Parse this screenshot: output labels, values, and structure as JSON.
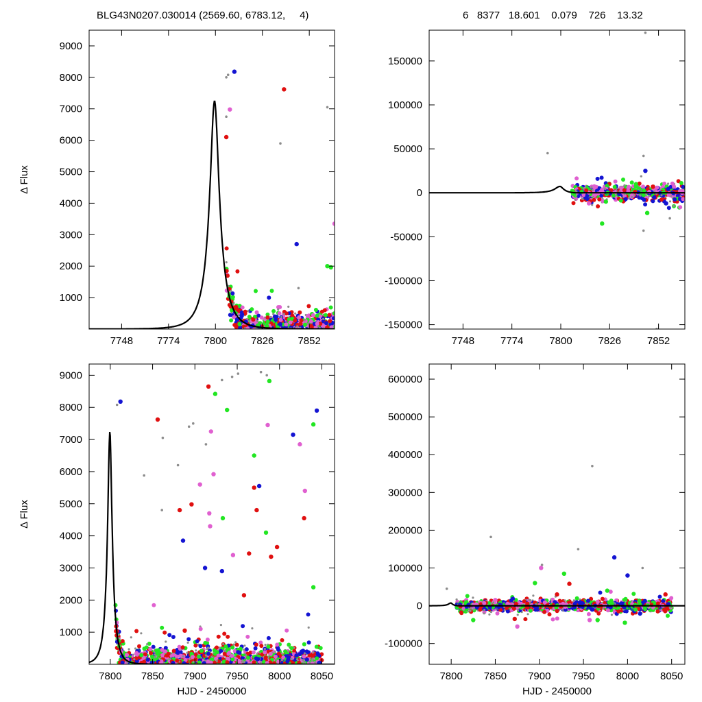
{
  "header": {
    "left_label": "BLG43N0207.030014 (2569.60, 6783.12,     4)",
    "right_label": "6   8377   18.601    0.079    726    13.32"
  },
  "colors": {
    "model": "#000000",
    "gray": "#8c8c8c",
    "red": "#e01010",
    "blue": "#1414d2",
    "green": "#22e622",
    "pink": "#e060d0"
  },
  "chart_data": [
    {
      "id": "top-left",
      "type": "scatter",
      "title": "",
      "xlabel": "",
      "ylabel": "Δ Flux",
      "xlim": [
        7730,
        7866
      ],
      "ylim": [
        0,
        9500
      ],
      "xticks": [
        7748,
        7774,
        7800,
        7826,
        7852
      ],
      "yticks": [
        1000,
        2000,
        3000,
        4000,
        5000,
        6000,
        7000,
        8000,
        9000
      ],
      "model": {
        "t0": 7799.5,
        "peak": 7250,
        "u0": 0.28,
        "tE": 9.0
      },
      "series": [
        {
          "color": "gray",
          "points": [
            [
              7806,
              8000
            ],
            [
              7807,
              8080
            ],
            [
              7862,
              7050
            ],
            [
              7836,
              5900
            ],
            [
              7806,
              6750
            ],
            [
              7846,
              1300
            ]
          ]
        },
        {
          "color": "red",
          "points": [
            [
              7838,
              7620
            ],
            [
              7806,
              6100
            ]
          ]
        },
        {
          "color": "blue",
          "points": [
            [
              7810.5,
              8180
            ],
            [
              7845,
              2700
            ],
            [
              7812,
              300
            ]
          ]
        },
        {
          "color": "pink",
          "points": [
            [
              7808,
              6980
            ],
            [
              7866,
              3350
            ]
          ]
        },
        {
          "color": "green",
          "points": [
            [
              7864,
              1960
            ],
            [
              7862,
              2000
            ]
          ]
        }
      ]
    },
    {
      "id": "top-right",
      "type": "scatter",
      "title": "",
      "xlabel": "",
      "ylabel": "",
      "xlim": [
        7730,
        7866
      ],
      "ylim": [
        -155000,
        185000
      ],
      "xticks": [
        7748,
        7774,
        7800,
        7826,
        7852
      ],
      "yticks": [
        -150000,
        -100000,
        -50000,
        0,
        50000,
        100000,
        150000
      ],
      "model": {
        "t0": 7799.5,
        "peak": 7250,
        "u0": 0.28,
        "tE": 9.0
      },
      "series": [
        {
          "color": "gray",
          "points": [
            [
              7793,
              45000
            ],
            [
              7844,
              42000
            ],
            [
              7844,
              -43000
            ],
            [
              7858,
              -29000
            ],
            [
              7860,
              -15000
            ],
            [
              7851,
              -155000
            ],
            [
              7845,
              182000
            ]
          ]
        },
        {
          "color": "red",
          "points": [
            [
              7849,
              7000
            ]
          ]
        },
        {
          "color": "blue",
          "points": [
            [
              7845,
              25000
            ],
            [
              7856,
              -12000
            ]
          ]
        },
        {
          "color": "green",
          "points": [
            [
              7822,
              -35000
            ],
            [
              7846,
              -23000
            ],
            [
              7824,
              -10000
            ]
          ]
        },
        {
          "color": "pink",
          "points": [
            [
              7815,
              -12000
            ]
          ]
        }
      ]
    },
    {
      "id": "bottom-left",
      "type": "scatter",
      "title": "",
      "xlabel": "HJD - 2450000",
      "ylabel": "Δ Flux",
      "xlim": [
        7775,
        8065
      ],
      "ylim": [
        0,
        9350
      ],
      "xticks": [
        7800,
        7850,
        7900,
        7950,
        8000,
        8050
      ],
      "yticks": [
        1000,
        2000,
        3000,
        4000,
        5000,
        6000,
        7000,
        8000,
        9000
      ],
      "model": {
        "t0": 7799.5,
        "peak": 7250,
        "u0": 0.28,
        "tE": 9.0
      },
      "series": [
        {
          "color": "red",
          "points": [
            [
              7856,
              7620
            ],
            [
              7916,
              8650
            ],
            [
              7882,
              4800
            ],
            [
              7970,
              5500
            ],
            [
              7973,
              4800
            ],
            [
              7990,
              3350
            ],
            [
              7997,
              3650
            ],
            [
              8029,
              4550
            ],
            [
              7896,
              4980
            ],
            [
              7964,
              3450
            ],
            [
              7888,
              1050
            ],
            [
              7958,
              2150
            ]
          ]
        },
        {
          "color": "blue",
          "points": [
            [
              7812,
              8180
            ],
            [
              8044,
              7900
            ],
            [
              8016,
              7150
            ],
            [
              7976,
              5550
            ],
            [
              7886,
              3850
            ],
            [
              7912,
              3000
            ],
            [
              7932,
              2900
            ]
          ]
        },
        {
          "color": "pink",
          "points": [
            [
              7919,
              7250
            ],
            [
              7906,
              5600
            ],
            [
              7922,
              5920
            ],
            [
              7986,
              7450
            ],
            [
              8030,
              5400
            ],
            [
              8024,
              6850
            ],
            [
              7945,
              3400
            ],
            [
              7917,
              4700
            ],
            [
              7918,
              4300
            ]
          ]
        },
        {
          "color": "green",
          "points": [
            [
              7924,
              8420
            ],
            [
              7938,
              7920
            ],
            [
              7988,
              8820
            ],
            [
              8040,
              7470
            ],
            [
              7970,
              6500
            ],
            [
              7933,
              4550
            ],
            [
              7984,
              4100
            ],
            [
              8040,
              2400
            ]
          ]
        },
        {
          "color": "gray",
          "points": [
            [
              7808,
              8080
            ],
            [
              7951,
              9050
            ],
            [
              7978,
              9100
            ],
            [
              7932,
              8850
            ],
            [
              7985,
              9000
            ],
            [
              7898,
              7500
            ],
            [
              7893,
              7400
            ],
            [
              7862,
              7050
            ],
            [
              7944,
              8950
            ],
            [
              7913,
              6850
            ],
            [
              7880,
              6200
            ],
            [
              7840,
              5880
            ],
            [
              7861,
              4800
            ]
          ]
        }
      ]
    },
    {
      "id": "bottom-right",
      "type": "scatter",
      "title": "",
      "xlabel": "HJD - 2450000",
      "ylabel": "",
      "xlim": [
        7775,
        8065
      ],
      "ylim": [
        -155000,
        640000
      ],
      "xticks": [
        7800,
        7850,
        7900,
        7950,
        8000,
        8050
      ],
      "yticks": [
        -100000,
        0,
        100000,
        200000,
        300000,
        400000,
        500000,
        600000
      ],
      "model": {
        "t0": 7799.5,
        "peak": 7250,
        "u0": 0.28,
        "tE": 9.0
      },
      "series": [
        {
          "color": "gray",
          "points": [
            [
              7845,
              182000
            ],
            [
              7944,
              150000
            ],
            [
              7960,
              370000
            ],
            [
              8017,
              100000
            ],
            [
              7903,
              108000
            ],
            [
              7795,
              45000
            ]
          ]
        },
        {
          "color": "blue",
          "points": [
            [
              7985,
              128000
            ],
            [
              8000,
              80000
            ],
            [
              7960,
              -10000
            ]
          ]
        },
        {
          "color": "green",
          "points": [
            [
              7928,
              85000
            ],
            [
              7895,
              60000
            ],
            [
              7977,
              40000
            ],
            [
              7997,
              -45000
            ],
            [
              7825,
              -38000
            ],
            [
              7966,
              -38000
            ]
          ]
        },
        {
          "color": "red",
          "points": [
            [
              7934,
              58000
            ],
            [
              7920,
              30000
            ],
            [
              8043,
              30000
            ],
            [
              7872,
              -35000
            ]
          ]
        },
        {
          "color": "pink",
          "points": [
            [
              7902,
              100000
            ],
            [
              7875,
              -55000
            ],
            [
              7957,
              -38000
            ],
            [
              7850,
              15000
            ]
          ]
        }
      ]
    }
  ]
}
